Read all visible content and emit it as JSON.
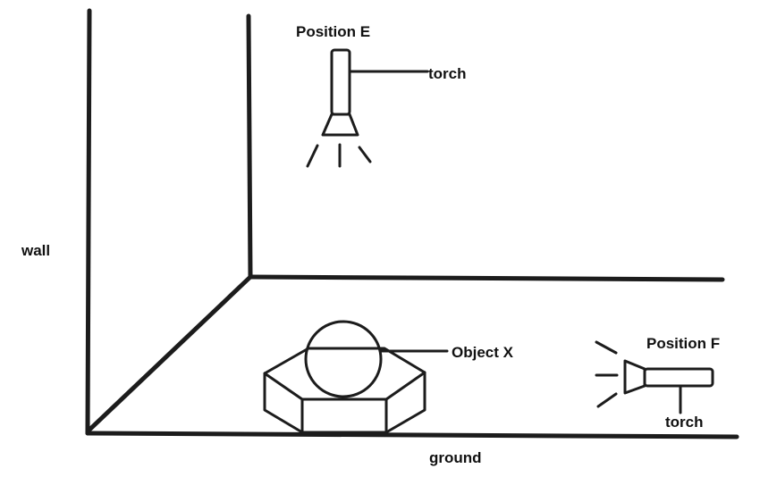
{
  "labels": {
    "wall": "wall",
    "ground": "ground",
    "position_e": "Position E",
    "position_f": "Position F",
    "torch_e": "torch",
    "torch_f": "torch",
    "object_x": "Object X"
  },
  "colors": {
    "ink": "#1c1c1c",
    "background": "#ffffff"
  },
  "icons": [
    "torch-icon",
    "light-ray-icon",
    "sphere-icon",
    "hexagonal-nut-icon"
  ]
}
